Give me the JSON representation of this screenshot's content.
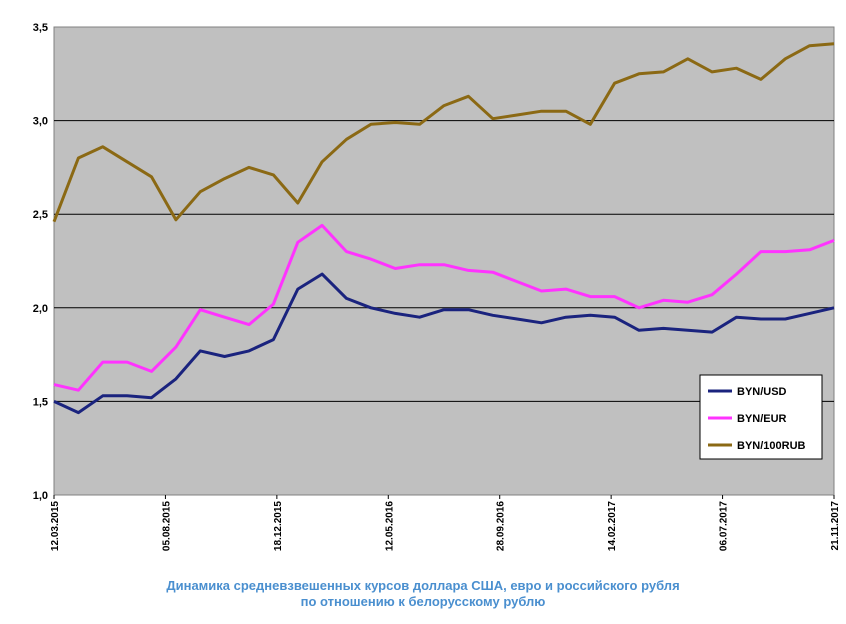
{
  "chart_data": {
    "type": "line",
    "caption_line1": "Динамика средневзвешенных курсов доллара США, евро и российского рубля",
    "caption_line2": "по отношению к белорусскому рублю",
    "ylim": [
      1.0,
      3.5
    ],
    "yticks": [
      "1,0",
      "1,5",
      "2,0",
      "2,5",
      "3,0",
      "3,5"
    ],
    "ytick_values": [
      1.0,
      1.5,
      2.0,
      2.5,
      3.0,
      3.5
    ],
    "xtick_labels": [
      "12.03.2015",
      "05.08.2015",
      "18.12.2015",
      "12.05.2016",
      "28.09.2016",
      "14.02.2017",
      "06.07.2017",
      "21.11.2017"
    ],
    "grid": true,
    "legend_position": "bottom-right",
    "plot_background": "#c0c0c0",
    "x": [
      "2015-03",
      "2015-04",
      "2015-05",
      "2015-06",
      "2015-07",
      "2015-08",
      "2015-09",
      "2015-10",
      "2015-11",
      "2015-12",
      "2016-01",
      "2016-02",
      "2016-03",
      "2016-04",
      "2016-05",
      "2016-06",
      "2016-07",
      "2016-08",
      "2016-09",
      "2016-10",
      "2016-11",
      "2016-12",
      "2017-01",
      "2017-02",
      "2017-03",
      "2017-04",
      "2017-05",
      "2017-06",
      "2017-07",
      "2017-08",
      "2017-09",
      "2017-10",
      "2017-11"
    ],
    "series": [
      {
        "name": "BYN/USD",
        "color": "#1a237e",
        "values": [
          1.5,
          1.44,
          1.53,
          1.53,
          1.52,
          1.62,
          1.77,
          1.74,
          1.77,
          1.83,
          2.1,
          2.18,
          2.05,
          2.0,
          1.97,
          1.95,
          1.99,
          1.99,
          1.96,
          1.94,
          1.92,
          1.95,
          1.96,
          1.95,
          1.88,
          1.89,
          1.88,
          1.87,
          1.95,
          1.94,
          1.94,
          1.97,
          2.0
        ]
      },
      {
        "name": "BYN/EUR",
        "color": "#ff33ff",
        "values": [
          1.59,
          1.56,
          1.71,
          1.71,
          1.66,
          1.79,
          1.99,
          1.95,
          1.91,
          2.02,
          2.35,
          2.44,
          2.3,
          2.26,
          2.21,
          2.23,
          2.23,
          2.2,
          2.19,
          2.14,
          2.09,
          2.1,
          2.06,
          2.06,
          2.0,
          2.04,
          2.03,
          2.07,
          2.18,
          2.3,
          2.3,
          2.31,
          2.36
        ]
      },
      {
        "name": "BYN/100RUB",
        "color": "#8b6914",
        "values": [
          2.46,
          2.8,
          2.86,
          2.78,
          2.7,
          2.47,
          2.62,
          2.69,
          2.75,
          2.71,
          2.56,
          2.78,
          2.9,
          2.98,
          2.99,
          2.98,
          3.08,
          3.13,
          3.01,
          3.03,
          3.05,
          3.05,
          2.98,
          3.2,
          3.25,
          3.26,
          3.33,
          3.26,
          3.28,
          3.22,
          3.33,
          3.4,
          3.41
        ]
      }
    ]
  }
}
